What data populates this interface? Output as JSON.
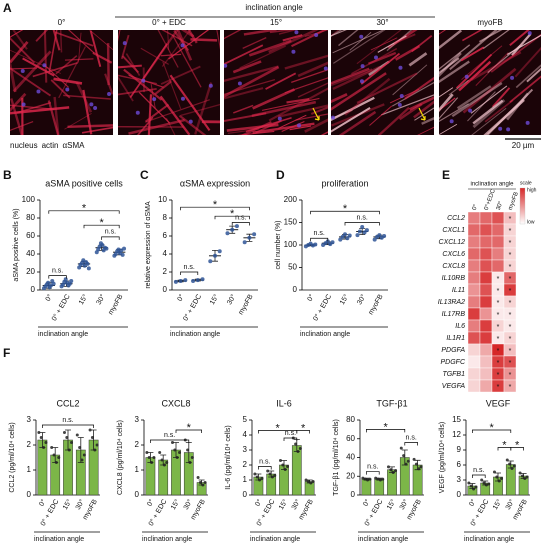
{
  "image_panel": {
    "panel": "A",
    "header": "inclination angle",
    "labels": [
      "0°",
      "0° + EDC",
      "15°",
      "30°",
      "myoFB"
    ],
    "legend": [
      {
        "text": "nucleus",
        "color": "#8e44ad"
      },
      {
        "text": "actin",
        "color": "#d81b3c"
      },
      {
        "text": "αSMA",
        "color": "#f4a6b4"
      }
    ],
    "scale_bar": "20 µm"
  },
  "chart_data": [
    {
      "type": "dotplot",
      "panel": "B",
      "title": "aSMA positive cells",
      "ylabel": "aSMA positive cells (%)",
      "categories": [
        "0°",
        "0° + EDC",
        "15°",
        "30°",
        "myoFB"
      ],
      "values": [
        5,
        7,
        29,
        47,
        42
      ],
      "errors": [
        3,
        3,
        3,
        3,
        3
      ],
      "points": [
        [
          2,
          4,
          6,
          8,
          3,
          5,
          10,
          7
        ],
        [
          4,
          6,
          9,
          12,
          8,
          5,
          7,
          10
        ],
        [
          25,
          28,
          30,
          33,
          27,
          31,
          29,
          24
        ],
        [
          42,
          45,
          48,
          52,
          50,
          44,
          47,
          46
        ],
        [
          38,
          40,
          43,
          45,
          41,
          44,
          39,
          46
        ]
      ],
      "color": "#2f5597",
      "ylim": [
        0,
        100
      ],
      "yticks": [
        0,
        20,
        40,
        60,
        80,
        100
      ],
      "group_label": "inclination angle",
      "brackets": [
        {
          "text": "n.s.",
          "from": "0°",
          "to": "0° + EDC",
          "y": 16
        },
        {
          "text": "*",
          "from": "0°",
          "to": "myoFB",
          "y": 88
        },
        {
          "text": "*",
          "from": "15°",
          "to": "myoFB",
          "y": 72
        },
        {
          "text": "n.s.",
          "from": "30°",
          "to": "myoFB",
          "y": 59
        }
      ]
    },
    {
      "type": "dotplot",
      "panel": "C",
      "title": "αSMA expression",
      "ylabel": "relative expression of αSMA",
      "categories": [
        "0°",
        "0° + EDC",
        "15°",
        "30°",
        "myoFB"
      ],
      "values": [
        1,
        1.1,
        3.8,
        6.7,
        5.8
      ],
      "errors": [
        0.1,
        0.1,
        0.6,
        0.4,
        0.4
      ],
      "points": [
        [
          0.9,
          1,
          1.1
        ],
        [
          1,
          1.1,
          1.2
        ],
        [
          3.2,
          3.8,
          4.3
        ],
        [
          6.3,
          6.7,
          7.1
        ],
        [
          5.3,
          5.8,
          6.2
        ]
      ],
      "color": "#2f5597",
      "ylim": [
        0,
        10
      ],
      "yticks": [
        0,
        2,
        4,
        6,
        8,
        10
      ],
      "group_label": "inclination angle",
      "brackets": [
        {
          "text": "n.s.",
          "from": "0°",
          "to": "0° + EDC",
          "y": 2
        },
        {
          "text": "*",
          "from": "0°",
          "to": "myoFB",
          "y": 9.2
        },
        {
          "text": "*",
          "from": "15°",
          "to": "myoFB",
          "y": 8.2
        },
        {
          "text": "n.s.",
          "from": "30°",
          "to": "myoFB",
          "y": 7.5
        }
      ]
    },
    {
      "type": "dotplot",
      "panel": "D",
      "title": "proliferation",
      "ylabel": "cell number (%)",
      "categories": [
        "0°",
        "0° + EDC",
        "15°",
        "30°",
        "myoFB"
      ],
      "values": [
        100,
        104,
        118,
        130,
        118
      ],
      "errors": [
        2,
        3,
        5,
        7,
        4
      ],
      "points": [
        [
          97,
          100,
          103,
          99,
          101
        ],
        [
          100,
          104,
          108,
          102,
          106
        ],
        [
          112,
          118,
          124,
          115,
          121
        ],
        [
          122,
          130,
          140,
          128,
          133
        ],
        [
          112,
          118,
          122,
          116,
          120
        ]
      ],
      "color": "#2f5597",
      "ylim": [
        0,
        200
      ],
      "yticks": [
        0,
        50,
        100,
        150,
        200
      ],
      "group_label": "inclination angle",
      "brackets": [
        {
          "text": "n.s.",
          "from": "0°",
          "to": "0° + EDC",
          "y": 115
        },
        {
          "text": "*",
          "from": "0°",
          "to": "myoFB",
          "y": 175
        },
        {
          "text": "n.s.",
          "from": "15°",
          "to": "myoFB",
          "y": 150
        }
      ]
    },
    {
      "type": "heatmap",
      "panel": "E",
      "title": "inclination angle",
      "columns": [
        "0°",
        "0°+EDC",
        "30°",
        "myoFB"
      ],
      "rows": [
        "CCL2",
        "CXCL1",
        "CXCL12",
        "CXCL6",
        "CXCL8",
        "IL10RB",
        "IL11",
        "IL13RA2",
        "IL17RB",
        "IL6",
        "IL1R1",
        "PDGFA",
        "PDGFC",
        "TGFB1",
        "VEGFA"
      ],
      "values": [
        [
          0.6,
          0.7,
          0.8,
          0.3
        ],
        [
          0.7,
          0.8,
          0.7,
          0.2
        ],
        [
          0.6,
          0.7,
          0.7,
          0.2
        ],
        [
          0.7,
          0.8,
          0.6,
          0.2
        ],
        [
          0.6,
          0.8,
          0.7,
          0.2
        ],
        [
          0.6,
          0.9,
          0.1,
          0.7
        ],
        [
          0.5,
          0.8,
          0.1,
          0.9
        ],
        [
          0.6,
          0.9,
          0.1,
          0.2
        ],
        [
          0.9,
          0.5,
          0.1,
          0.1
        ],
        [
          0.6,
          0.9,
          0.2,
          0.1
        ],
        [
          0.8,
          0.9,
          0.1,
          0.2
        ],
        [
          0.2,
          0.4,
          1,
          0.3
        ],
        [
          0.1,
          0.3,
          0.9,
          0.8
        ],
        [
          0.2,
          0.3,
          0.9,
          0.5
        ],
        [
          0.2,
          0.4,
          0.9,
          0.4
        ]
      ],
      "cell_labels": [
        [
          null,
          null,
          null,
          "*"
        ],
        [
          null,
          null,
          null,
          "*"
        ],
        [
          null,
          null,
          null,
          "*"
        ],
        [
          null,
          null,
          null,
          "*"
        ],
        [
          null,
          null,
          null,
          "*"
        ],
        [
          null,
          null,
          "*",
          "*"
        ],
        [
          null,
          null,
          "*",
          "*"
        ],
        [
          null,
          null,
          "*",
          "*"
        ],
        [
          null,
          null,
          "*",
          "*"
        ],
        [
          null,
          null,
          "*",
          "*"
        ],
        [
          null,
          null,
          "*",
          "*"
        ],
        [
          null,
          null,
          "*",
          "*"
        ],
        [
          null,
          null,
          "*",
          "*"
        ],
        [
          null,
          null,
          "*",
          "*"
        ],
        [
          null,
          null,
          "*",
          "*"
        ]
      ],
      "colors": [
        "#ffffff",
        "#d62728"
      ],
      "legend_title": "scale",
      "legend_high": "high",
      "legend_low": "low"
    },
    {
      "type": "bar",
      "panel": "F",
      "title": "CCL2",
      "ylabel": "CCL2 (pg/ml/10⁴ cells)",
      "categories": [
        "0°",
        "0° + EDC",
        "15°",
        "30°",
        "myoFB"
      ],
      "values": [
        2.2,
        1.6,
        2.2,
        1.8,
        2.2
      ],
      "errors": [
        0.3,
        0.3,
        0.4,
        0.5,
        0.4
      ],
      "points": [
        [
          2.5,
          2.3,
          1.9,
          2.1
        ],
        [
          1.9,
          1.6,
          1.3,
          1.5
        ],
        [
          2.5,
          2.3,
          1.8,
          2.1
        ],
        [
          2.4,
          1.9,
          1.4,
          1.6
        ],
        [
          2.6,
          2.3,
          1.8,
          2.0
        ]
      ],
      "color": "#7cb648",
      "ylim": [
        0,
        3
      ],
      "yticks": [
        0,
        1,
        2,
        3
      ],
      "group_label": "inclination angle",
      "brackets": [
        {
          "text": "n.s.",
          "from": "0°",
          "to": "myoFB",
          "y": 2.8
        }
      ]
    },
    {
      "type": "bar",
      "title": "CXCL8",
      "ylabel": "CXCL8 (pg/ml/10⁴ cells)",
      "categories": [
        "0°",
        "0° + EDC",
        "15°",
        "30°",
        "myoFB"
      ],
      "values": [
        1.5,
        1.4,
        1.8,
        1.7,
        0.5
      ],
      "errors": [
        0.2,
        0.2,
        0.3,
        0.4,
        0.1
      ],
      "points": [
        [
          1.7,
          1.5,
          1.3,
          1.5
        ],
        [
          1.7,
          1.4,
          1.2,
          1.3
        ],
        [
          2.1,
          1.8,
          1.5,
          1.7
        ],
        [
          2.2,
          1.8,
          1.3,
          1.5
        ],
        [
          0.7,
          0.5,
          0.4,
          0.5
        ]
      ],
      "color": "#7cb648",
      "ylim": [
        0,
        3
      ],
      "yticks": [
        0,
        1,
        2,
        3
      ],
      "group_label": "inclination angle",
      "brackets": [
        {
          "text": "*",
          "from": "15°",
          "to": "myoFB",
          "y": 2.6
        },
        {
          "text": "n.s.",
          "from": "0°",
          "to": "30°",
          "y": 2.2
        }
      ]
    },
    {
      "type": "bar",
      "title": "IL-6",
      "ylabel": "IL-6 (pg/ml/10⁴ cells)",
      "categories": [
        "0°",
        "0° + EDC",
        "15°",
        "30°",
        "myoFB"
      ],
      "values": [
        1.2,
        1.4,
        2.0,
        3.3,
        0.9
      ],
      "errors": [
        0.2,
        0.2,
        0.3,
        0.4,
        0.1
      ],
      "points": [
        [
          1.4,
          1.2,
          1.0,
          1.1
        ],
        [
          1.6,
          1.4,
          1.2,
          1.3
        ],
        [
          2.3,
          2.0,
          1.7,
          1.9
        ],
        [
          3.8,
          3.4,
          2.9,
          3.1
        ],
        [
          1.0,
          0.9,
          0.8,
          0.9
        ]
      ],
      "color": "#7cb648",
      "ylim": [
        0,
        5
      ],
      "yticks": [
        0,
        1,
        2,
        3,
        4,
        5
      ],
      "group_label": "inclination angle",
      "brackets": [
        {
          "text": "n.s.",
          "from": "0°",
          "to": "0° + EDC",
          "y": 1.9
        },
        {
          "text": "*",
          "from": "0°",
          "to": "30°",
          "y": 4.3
        },
        {
          "text": "*",
          "from": "30°",
          "to": "myoFB",
          "y": 4.3
        },
        {
          "text": "n.s.",
          "from": "15°",
          "to": "30°",
          "y": 3.8
        }
      ]
    },
    {
      "type": "bar",
      "title": "TGF-β1",
      "ylabel": "TGF-β1 (pg/ml/10⁴ cells)",
      "categories": [
        "0°",
        "0° + EDC",
        "15°",
        "30°",
        "myoFB"
      ],
      "values": [
        17,
        17,
        27,
        40,
        32
      ],
      "errors": [
        1,
        1,
        3,
        8,
        5
      ],
      "points": [
        [
          18,
          17,
          16,
          17
        ],
        [
          18,
          17,
          16,
          17
        ],
        [
          30,
          27,
          24,
          26
        ],
        [
          50,
          42,
          33,
          36
        ],
        [
          38,
          33,
          28,
          30
        ]
      ],
      "color": "#7cb648",
      "ylim": [
        0,
        80
      ],
      "yticks": [
        0,
        20,
        40,
        60,
        80
      ],
      "group_label": "inclination angle",
      "brackets": [
        {
          "text": "n.s.",
          "from": "0°",
          "to": "0° + EDC",
          "y": 25
        },
        {
          "text": "*",
          "from": "0°",
          "to": "30°",
          "y": 70
        },
        {
          "text": "n.s.",
          "from": "30°",
          "to": "myoFB",
          "y": 56
        }
      ]
    },
    {
      "type": "bar",
      "title": "VEGF",
      "ylabel": "VEGF (pg/ml/10⁴ cells)",
      "categories": [
        "0°",
        "0° + EDC",
        "15°",
        "30°",
        "myoFB"
      ],
      "values": [
        1.8,
        2.4,
        3.6,
        6.1,
        3.8
      ],
      "errors": [
        0.5,
        0.4,
        0.8,
        0.7,
        0.5
      ],
      "points": [
        [
          2.4,
          1.8,
          1.2,
          1.6
        ],
        [
          3.0,
          2.4,
          2.0,
          2.2
        ],
        [
          4.6,
          3.6,
          2.8,
          3.3
        ],
        [
          7.0,
          6.2,
          5.3,
          5.8
        ],
        [
          4.4,
          3.8,
          3.3,
          3.6
        ]
      ],
      "color": "#7cb648",
      "ylim": [
        0,
        15
      ],
      "yticks": [
        0,
        3,
        6,
        9,
        12,
        15
      ],
      "group_label": "inclination angle",
      "brackets": [
        {
          "text": "n.s.",
          "from": "0°",
          "to": "0° + EDC",
          "y": 4
        },
        {
          "text": "*",
          "from": "0°",
          "to": "30°",
          "y": 13
        },
        {
          "text": "*",
          "from": "15°",
          "to": "30°",
          "y": 9.5
        },
        {
          "text": "*",
          "from": "30°",
          "to": "myoFB",
          "y": 9.5
        }
      ]
    }
  ]
}
